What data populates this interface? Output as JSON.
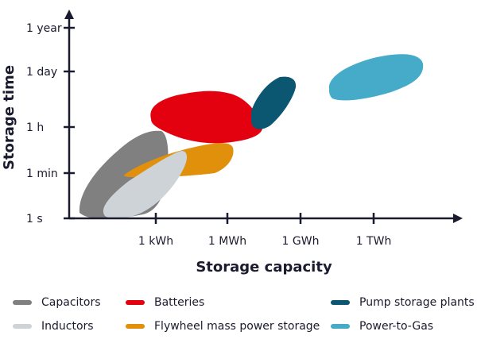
{
  "chart_data": {
    "type": "scatter",
    "xlabel": "Storage capacity",
    "ylabel": "Storage time",
    "x_ticks": [
      "1 kWh",
      "1 MWh",
      "1 GWh",
      "1 TWh"
    ],
    "y_ticks": [
      "1 s",
      "1 min",
      "1 h",
      "1 day",
      "1 year"
    ],
    "series": [
      {
        "name": "Capacitors",
        "color": "#808080",
        "x_range": [
          "< 1 kWh",
          "~30 kWh"
        ],
        "y_range": [
          "1 s",
          "~1 h"
        ]
      },
      {
        "name": "Inductors",
        "color": "#cdd3d6",
        "x_range": [
          "< 1 kWh",
          "~10 kWh"
        ],
        "y_range": [
          "1 s",
          "~30 min"
        ]
      },
      {
        "name": "Batteries",
        "color": "#e3000f",
        "x_range": [
          "~1 kWh",
          "~1 GWh"
        ],
        "y_range": [
          "~20 min",
          "~8 h"
        ]
      },
      {
        "name": "Flywheel mass power storage",
        "color": "#e0900b",
        "x_range": [
          "~100 Wh",
          "~1 MWh"
        ],
        "y_range": [
          "~1 min",
          "~1 h"
        ]
      },
      {
        "name": "Pump storage plants",
        "color": "#0b5670",
        "x_range": [
          "~300 MWh",
          "~10 GWh"
        ],
        "y_range": [
          "~1 h",
          "~1 day"
        ]
      },
      {
        "name": "Power-to-Gas",
        "color": "#45abc9",
        "x_range": [
          "~10 GWh",
          "~10 TWh"
        ],
        "y_range": [
          "~6 h",
          "~1 week"
        ]
      }
    ]
  },
  "legend": [
    {
      "label": "Capacitors",
      "color": "#808080"
    },
    {
      "label": "Batteries",
      "color": "#e3000f"
    },
    {
      "label": "Pump storage plants",
      "color": "#0b5670"
    },
    {
      "label": "Inductors",
      "color": "#cdd3d6"
    },
    {
      "label": "Flywheel mass power storage",
      "color": "#e0900b"
    },
    {
      "label": "Power-to-Gas",
      "color": "#45abc9"
    }
  ]
}
